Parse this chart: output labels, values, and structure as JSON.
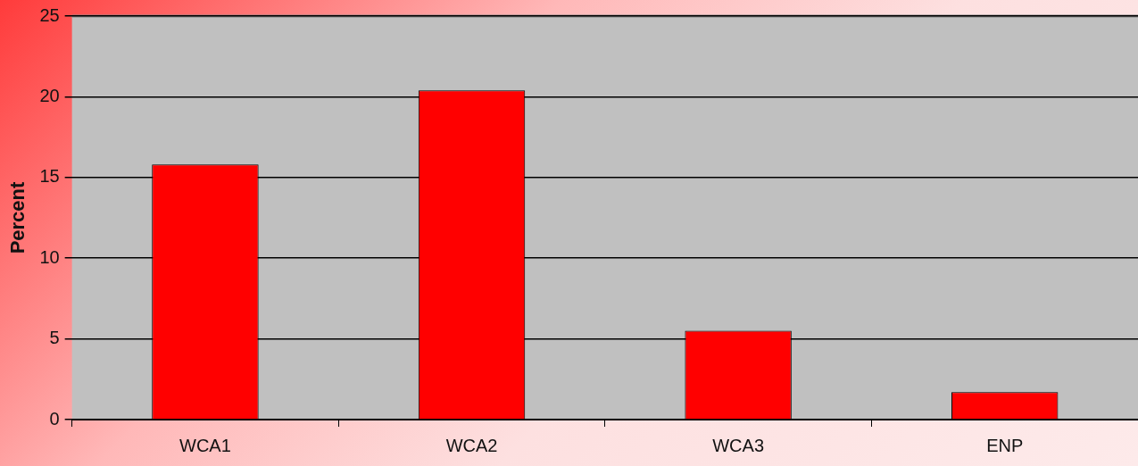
{
  "chart_data": {
    "type": "bar",
    "ylabel": "Percent",
    "categories": [
      "WCA1",
      "WCA2",
      "WCA3",
      "ENP"
    ],
    "values": [
      15.8,
      20.4,
      5.5,
      1.7
    ],
    "color": "#ff0000",
    "ylim": [
      0,
      25
    ],
    "yticks": [
      0,
      5,
      10,
      15,
      20,
      25
    ],
    "grid": "y"
  }
}
